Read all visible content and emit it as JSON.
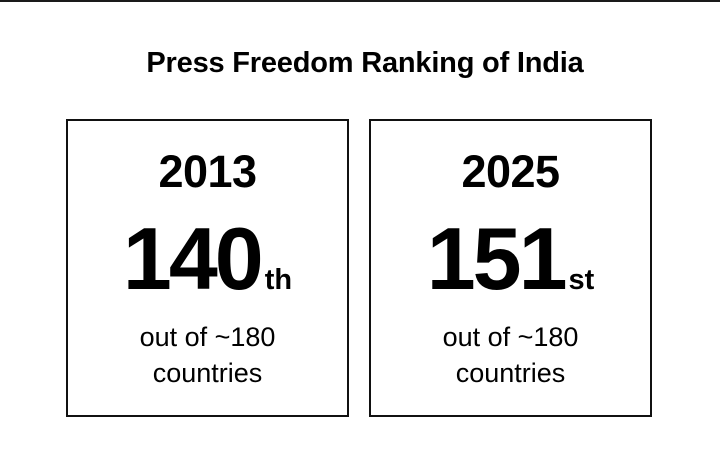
{
  "title": "Press Freedom Ranking of India",
  "cards": [
    {
      "year": "2013",
      "rank": "140",
      "suffix": "th",
      "note_line1": "out of ~180",
      "note_line2": "countries"
    },
    {
      "year": "2025",
      "rank": "151",
      "suffix": "st",
      "note_line1": "out of ~180",
      "note_line2": "countries"
    }
  ]
}
